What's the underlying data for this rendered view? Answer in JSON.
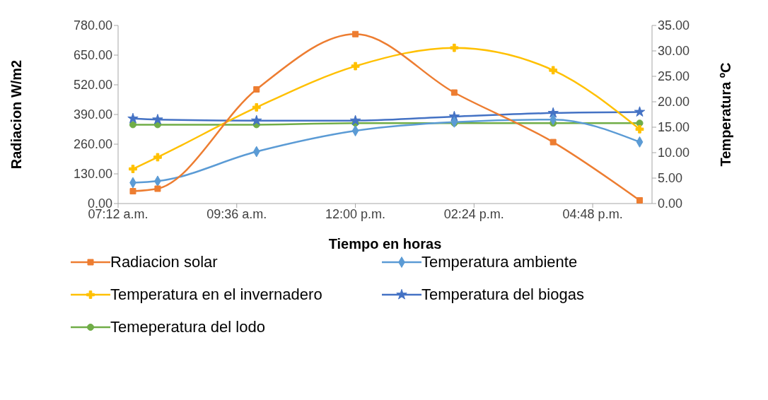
{
  "chart_data": {
    "type": "line",
    "xlabel": "Tiempo en horas",
    "ylabel": "Radiacion W/m2",
    "y2label": "Temperatura ºC",
    "xlim": [
      7.2,
      18.0
    ],
    "xticks": [
      {
        "value": 7.2,
        "label": "07:12 a.m."
      },
      {
        "value": 9.6,
        "label": "09:36 a.m."
      },
      {
        "value": 12,
        "label": "12:00 p.m."
      },
      {
        "value": 14.4,
        "label": "02:24 p.m."
      },
      {
        "value": 16.8,
        "label": "04:48 p.m."
      }
    ],
    "ylim": [
      0,
      780
    ],
    "yticks": [
      {
        "value": 0,
        "label": "0.00"
      },
      {
        "value": 130,
        "label": "130.00"
      },
      {
        "value": 260,
        "label": "260.00"
      },
      {
        "value": 390,
        "label": "390.00"
      },
      {
        "value": 520,
        "label": "520.00"
      },
      {
        "value": 650,
        "label": "650.00"
      },
      {
        "value": 780,
        "label": "780.00"
      }
    ],
    "y2lim": [
      0,
      35
    ],
    "y2ticks": [
      {
        "value": 0,
        "label": "0.00"
      },
      {
        "value": 5,
        "label": "5.00"
      },
      {
        "value": 10,
        "label": "10.00"
      },
      {
        "value": 15,
        "label": "15.00"
      },
      {
        "value": 20,
        "label": "20.00"
      },
      {
        "value": 25,
        "label": "25.00"
      },
      {
        "value": 30,
        "label": "30.00"
      },
      {
        "value": 35,
        "label": "35.00"
      }
    ],
    "x": [
      7.5,
      8,
      10,
      12,
      14,
      16,
      17.75
    ],
    "grid": false,
    "legend": "bottom",
    "line_style": "solid",
    "series": [
      {
        "name": "Radiacion solar",
        "color": "#ed7d31",
        "marker": "square",
        "values": [
          54,
          65,
          500,
          742,
          486,
          269,
          14
        ]
      },
      {
        "name": "Temperatura ambiente",
        "color": "#5b9bd5",
        "marker": "diamond",
        "axis": "y2",
        "values": [
          4.1,
          4.4,
          10.2,
          14.3,
          16.0,
          16.5,
          12.1
        ]
      },
      {
        "name": "Temperatura en el invernadero",
        "color": "#ffc000",
        "marker": "cross",
        "axis": "y2",
        "values": [
          6.8,
          9.1,
          18.9,
          27.0,
          30.6,
          26.2,
          14.6
        ]
      },
      {
        "name": "Temperatura del biogas",
        "color": "#4472c4",
        "marker": "star",
        "axis": "y2",
        "values": [
          16.7,
          16.5,
          16.3,
          16.3,
          17.1,
          17.8,
          18.0
        ]
      },
      {
        "name": "Temeperatura  del lodo",
        "color": "#70ad47",
        "marker": "circle",
        "axis": "y2",
        "values": [
          15.5,
          15.5,
          15.5,
          15.8,
          15.8,
          15.8,
          15.8
        ]
      }
    ]
  }
}
